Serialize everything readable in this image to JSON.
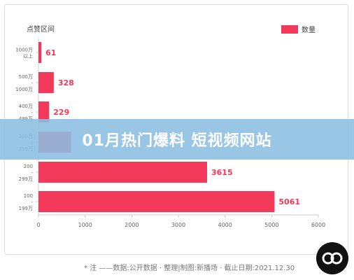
{
  "banner": {
    "title": "01月热门爆料 短视频网站"
  },
  "footnote": "* 注 ——数据:公开数据 · 整理|制图:新播场 · 截止日期:2021.12.30",
  "colors": {
    "bar": "#f2395a",
    "axis": "#cccccc",
    "text": "#444444",
    "banner": "#8cbee1"
  },
  "chart_data": {
    "type": "bar",
    "orientation": "horizontal",
    "title": "",
    "ylabel": "点赞区间",
    "xlabel": "",
    "categories": [
      [
        "1000万",
        "以上"
      ],
      [
        "500万",
        "-",
        "1000万"
      ],
      [
        "400万",
        "-",
        "499万"
      ],
      [
        "300万",
        "-",
        "399万"
      ],
      [
        "200",
        "-",
        "299万"
      ],
      [
        "100",
        "-",
        "199万"
      ]
    ],
    "series": [
      {
        "name": "数量",
        "values": [
          61,
          328,
          229,
          700,
          3615,
          5061
        ]
      }
    ],
    "data_labels": [
      "61",
      "328",
      "229",
      "",
      "3615",
      "5061"
    ],
    "xlim": [
      0,
      6000
    ],
    "xticks": [
      "0",
      "1000",
      "2000",
      "3000",
      "4000",
      "5000",
      "6000"
    ],
    "legend": "top-right",
    "grid": false
  }
}
